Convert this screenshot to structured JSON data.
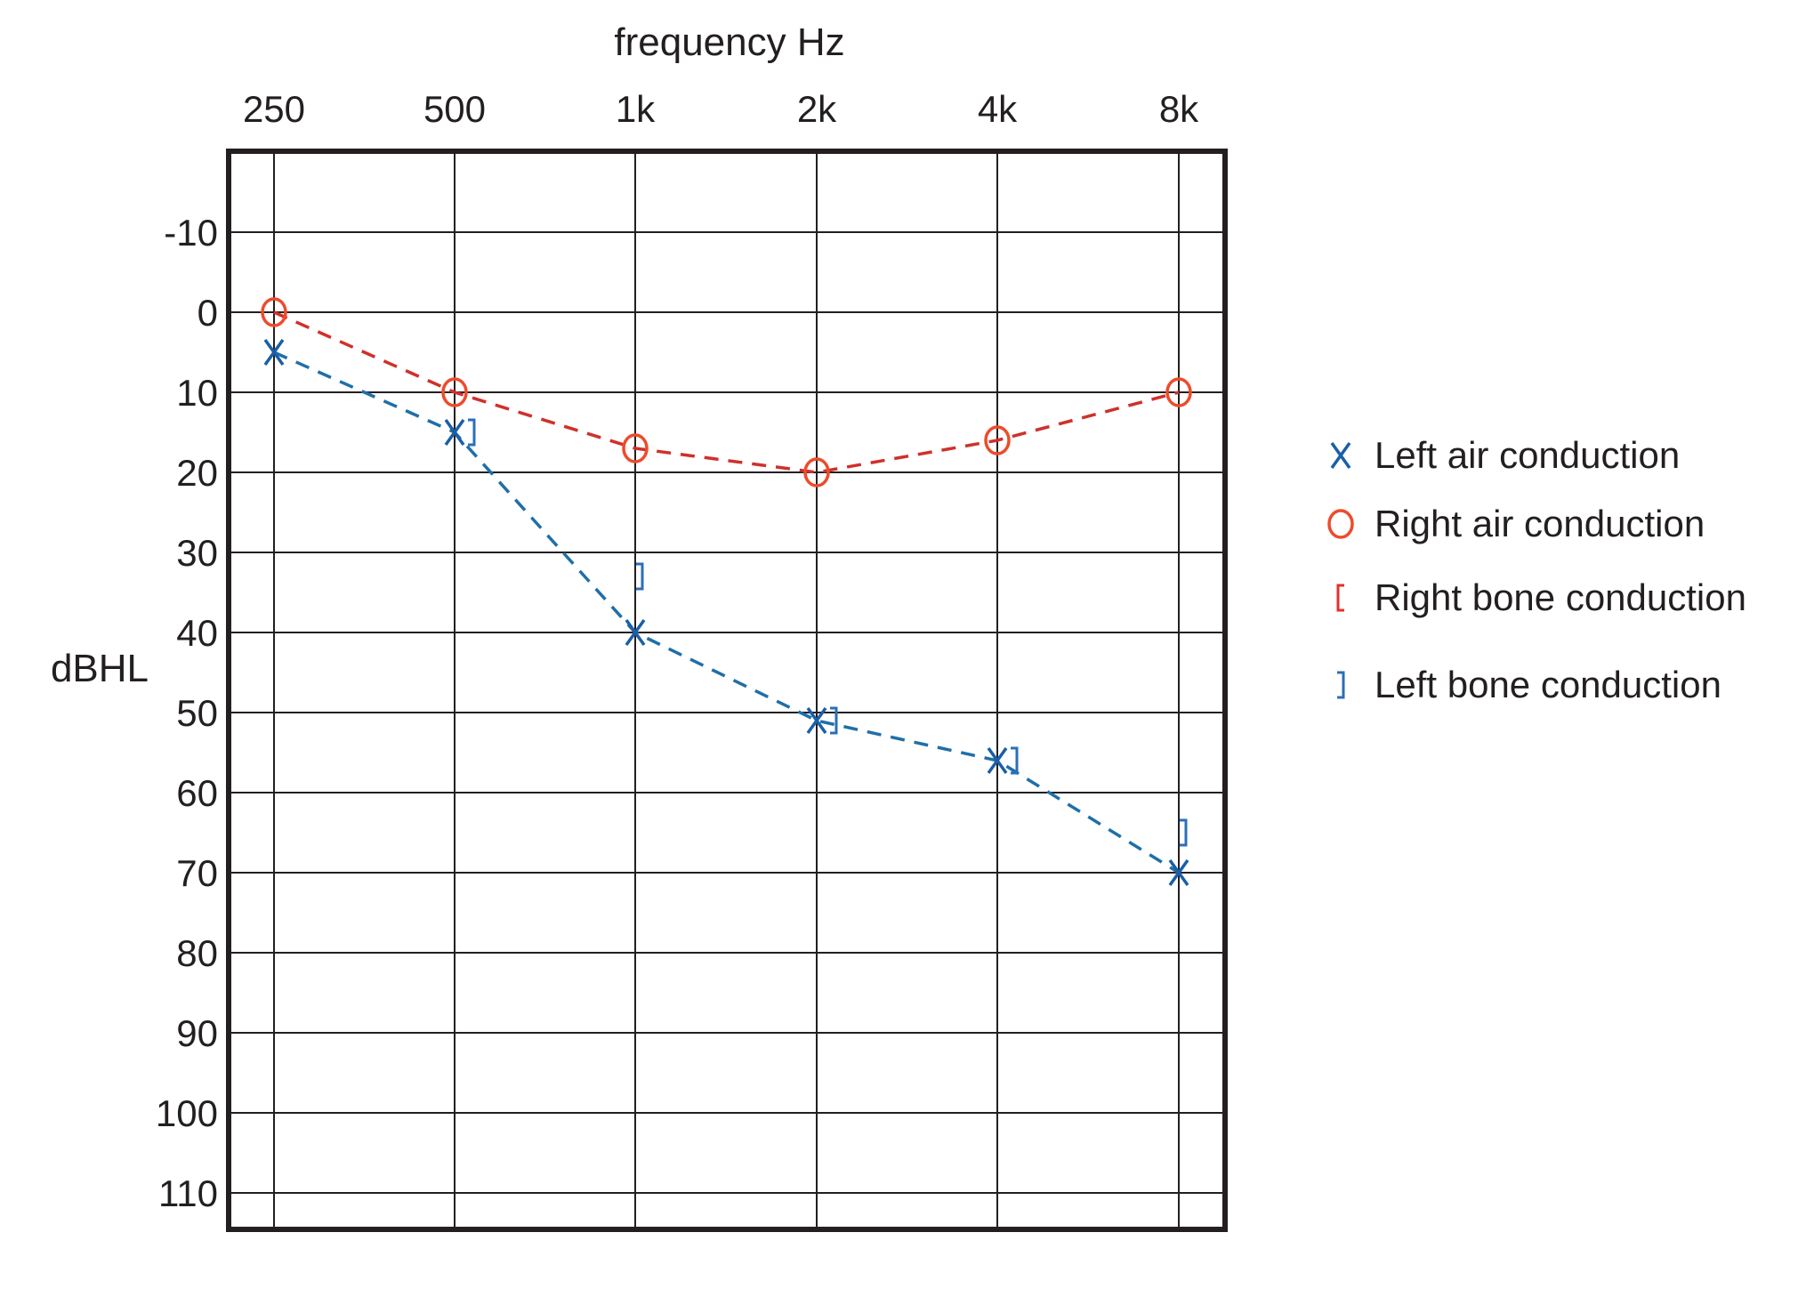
{
  "chart_data": {
    "type": "line",
    "chart_kind": "audiogram",
    "xlabel": "frequency Hz",
    "ylabel": "dBHL",
    "x_position": "top",
    "y_inverted": true,
    "grid": true,
    "categories": [
      "250",
      "500",
      "1k",
      "2k",
      "4k",
      "8k"
    ],
    "y_ticks": [
      "-10",
      "0",
      "10",
      "20",
      "30",
      "40",
      "50",
      "60",
      "70",
      "80",
      "90",
      "100",
      "110"
    ],
    "ylim": [
      -20,
      115
    ],
    "legend_position": "right",
    "series": [
      {
        "name": "Left air conduction",
        "marker": "X",
        "color": "#1a5ea8",
        "line_color": "#1f6fa8",
        "line_style": "dashed",
        "values": [
          5,
          15,
          40,
          51,
          56,
          70
        ]
      },
      {
        "name": "Right air conduction",
        "marker": "O",
        "color": "#ee4b2b",
        "line_color": "#d0302a",
        "line_style": "dashed",
        "values": [
          0,
          10,
          17,
          20,
          16,
          10
        ]
      },
      {
        "name": "Right bone conduction",
        "marker": "[",
        "color": "#e0322d",
        "values": [
          null,
          null,
          null,
          null,
          null,
          null
        ]
      },
      {
        "name": "Left bone conduction",
        "marker": "]",
        "color": "#2a6fb8",
        "values": [
          null,
          15,
          35,
          51,
          56,
          67
        ]
      }
    ]
  }
}
